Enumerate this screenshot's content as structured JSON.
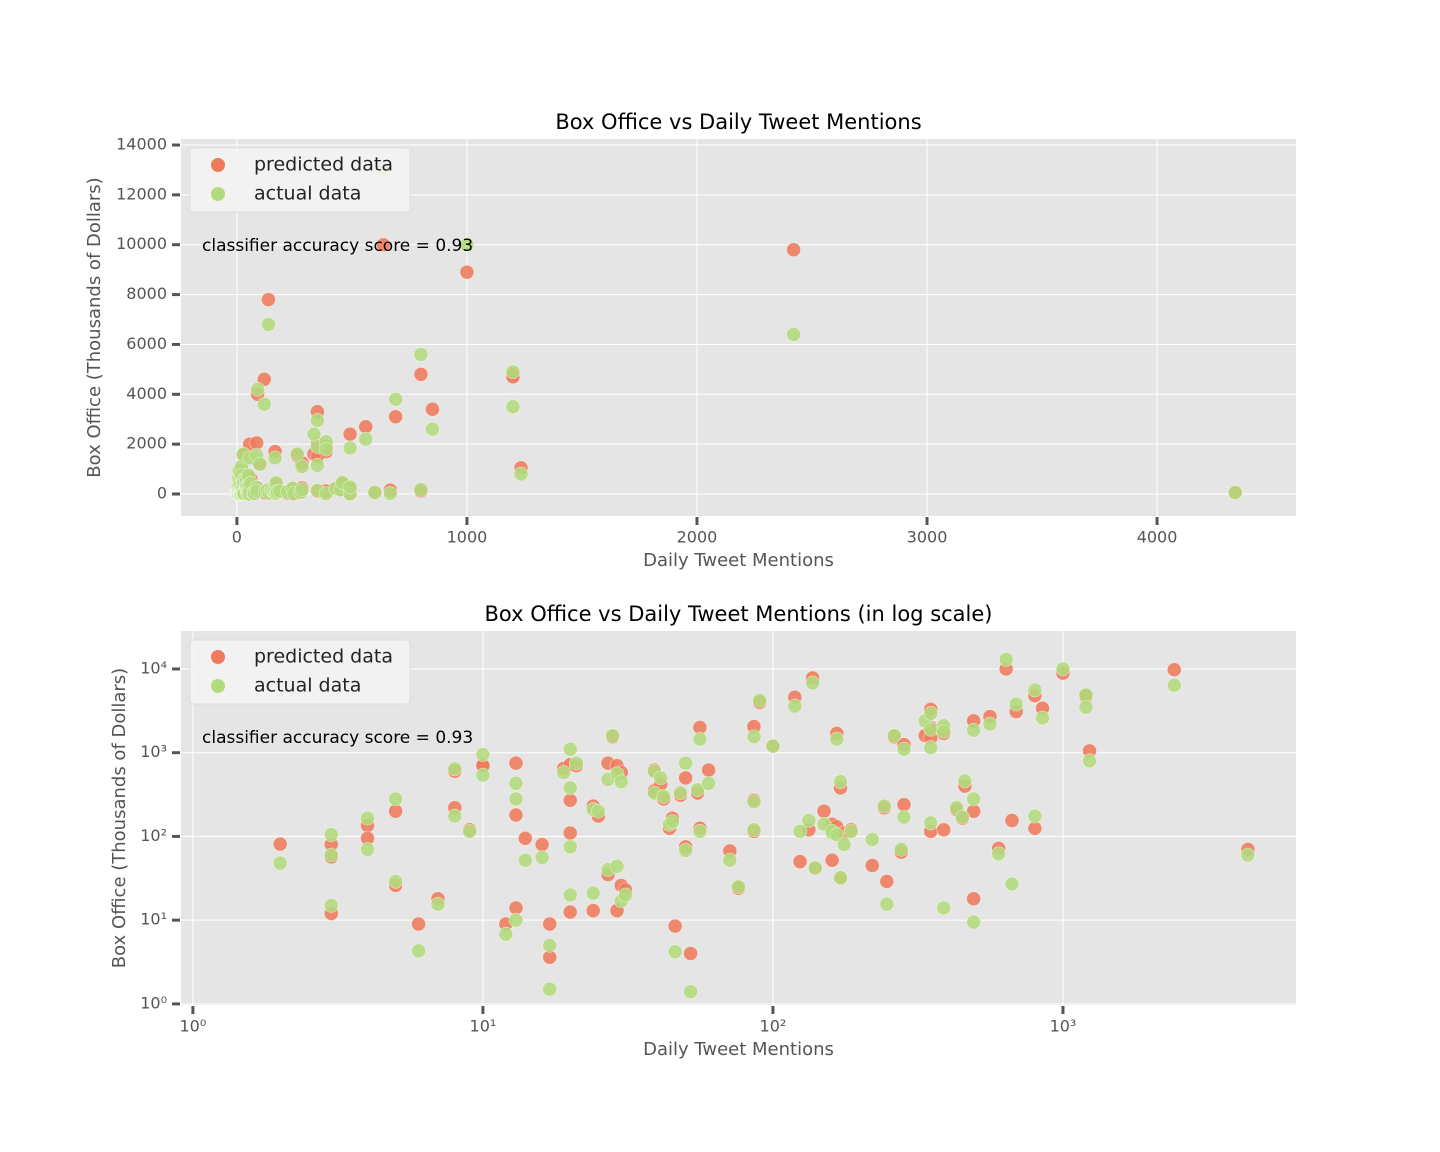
{
  "chart_data": [
    {
      "type": "scatter",
      "title": "Box Office vs Daily Tweet Mentions",
      "x_label": "Daily Tweet Mentions",
      "y_label": "Box Office (Thousands of Dollars)",
      "annotation": "classifier accuracy score = 0.93",
      "legend": "upper left",
      "grid": true,
      "xscale": "linear",
      "yscale": "linear",
      "xlim": [
        -243,
        4604
      ],
      "ylim": [
        -882,
        14241
      ],
      "xticks": [
        0,
        1000,
        2000,
        3000,
        4000
      ],
      "yticks": [
        0,
        2000,
        4000,
        6000,
        8000,
        10000,
        12000,
        14000
      ],
      "x": [
        2,
        3,
        3,
        3,
        4,
        4,
        5,
        5,
        6,
        7,
        8,
        8,
        9,
        10,
        10,
        12,
        13,
        13,
        13,
        14,
        16,
        17,
        17,
        19,
        20,
        20,
        20,
        20,
        21,
        24,
        24,
        25,
        27,
        27,
        28,
        29,
        29,
        30,
        30,
        31,
        39,
        39,
        41,
        42,
        44,
        45,
        46,
        48,
        50,
        50,
        52,
        55,
        56,
        56,
        60,
        71,
        76,
        86,
        86,
        86,
        90,
        100,
        119,
        124,
        133,
        137,
        140,
        150,
        160,
        160,
        166,
        166,
        171,
        171,
        176,
        186,
        220,
        242,
        247,
        262,
        277,
        283,
        283,
        335,
        350,
        350,
        350,
        350,
        388,
        388,
        388,
        430,
        450,
        459,
        492,
        492,
        492,
        560,
        600,
        637,
        667,
        690,
        800,
        800,
        850,
        1000,
        1200,
        1200,
        1235,
        2420,
        4340
      ],
      "series": [
        {
          "name": "predicted data",
          "color": "#ee7b5b",
          "values": [
            81,
            12,
            57,
            80,
            135,
            95,
            200,
            26,
            9,
            18,
            220,
            600,
            120,
            700,
            700,
            9,
            750,
            180,
            14,
            95,
            80,
            9,
            3.6,
            650,
            270,
            110,
            12.5,
            720,
            700,
            230,
            13,
            175,
            750,
            35,
            1550,
            700,
            13,
            580,
            26,
            23,
            620,
            350,
            420,
            280,
            125,
            165,
            8.5,
            310,
            500,
            75,
            4,
            330,
            2000,
            125,
            620,
            67,
            24,
            2050,
            270,
            115,
            4000,
            1200,
            4600,
            50,
            120,
            7800,
            42,
            200,
            52,
            140,
            1700,
            130,
            380,
            32,
            110,
            120,
            45,
            220,
            29,
            1550,
            65,
            240,
            1250,
            1600,
            3300,
            115,
            1500,
            2000,
            1700,
            120,
            1900,
            210,
            165,
            400,
            18,
            200,
            2400,
            2700,
            72,
            10000,
            155,
            3100,
            4800,
            125,
            3400,
            8900,
            4800,
            4700,
            1050,
            9800,
            70
          ]
        },
        {
          "name": "actual data",
          "color": "#b2db7c",
          "values": [
            48,
            15,
            60,
            105,
            165,
            70,
            280,
            29,
            4.3,
            15.5,
            175,
            640,
            115,
            950,
            540,
            6.8,
            280,
            430,
            10,
            52,
            56,
            5,
            1.5,
            580,
            1100,
            75,
            20,
            380,
            750,
            210,
            21,
            200,
            480,
            40,
            1600,
            560,
            44,
            450,
            17,
            20,
            600,
            330,
            500,
            300,
            140,
            150,
            4.2,
            330,
            750,
            68,
            1.4,
            360,
            1450,
            115,
            430,
            52,
            25,
            1550,
            260,
            120,
            4200,
            1200,
            3600,
            115,
            155,
            6800,
            42,
            140,
            110,
            115,
            1450,
            105,
            450,
            32,
            80,
            115,
            92,
            230,
            15.5,
            1600,
            70,
            170,
            1100,
            2400,
            2950,
            145,
            1150,
            1900,
            2100,
            14,
            1800,
            220,
            170,
            460,
            9.5,
            280,
            1850,
            2200,
            62,
            13000,
            27,
            3800,
            5600,
            175,
            2600,
            10000,
            4900,
            3500,
            800,
            6400,
            60
          ]
        }
      ]
    },
    {
      "type": "scatter",
      "title": "Box Office vs Daily Tweet Mentions (in log scale)",
      "x_label": "Daily Tweet Mentions",
      "y_label": "Box Office (Thousands of Dollars)",
      "annotation": "classifier accuracy score = 0.93",
      "legend": "upper left",
      "grid": true,
      "xscale": "log",
      "yscale": "log",
      "xlim": [
        0.91,
        6360
      ],
      "ylim": [
        0.97,
        28400
      ],
      "xticks": [
        {
          "value": 1,
          "label": "10⁰"
        },
        {
          "value": 10,
          "label": "10¹"
        },
        {
          "value": 100,
          "label": "10²"
        },
        {
          "value": 1000,
          "label": "10³"
        }
      ],
      "yticks": [
        {
          "value": 1,
          "label": "10⁰"
        },
        {
          "value": 10,
          "label": "10¹"
        },
        {
          "value": 100,
          "label": "10²"
        },
        {
          "value": 1000,
          "label": "10³"
        },
        {
          "value": 10000,
          "label": "10⁴"
        }
      ],
      "x": [
        2,
        3,
        3,
        3,
        4,
        4,
        5,
        5,
        6,
        7,
        8,
        8,
        9,
        10,
        10,
        12,
        13,
        13,
        13,
        14,
        16,
        17,
        17,
        19,
        20,
        20,
        20,
        20,
        21,
        24,
        24,
        25,
        27,
        27,
        28,
        29,
        29,
        30,
        30,
        31,
        39,
        39,
        41,
        42,
        44,
        45,
        46,
        48,
        50,
        50,
        52,
        55,
        56,
        56,
        60,
        71,
        76,
        86,
        86,
        86,
        90,
        100,
        119,
        124,
        133,
        137,
        140,
        150,
        160,
        160,
        166,
        166,
        171,
        171,
        176,
        186,
        220,
        242,
        247,
        262,
        277,
        283,
        283,
        335,
        350,
        350,
        350,
        350,
        388,
        388,
        388,
        430,
        450,
        459,
        492,
        492,
        492,
        560,
        600,
        637,
        667,
        690,
        800,
        800,
        850,
        1000,
        1200,
        1200,
        1235,
        2420,
        4340
      ],
      "series": [
        {
          "name": "predicted data",
          "color": "#ee7b5b",
          "values": [
            81,
            12,
            57,
            80,
            135,
            95,
            200,
            26,
            9,
            18,
            220,
            600,
            120,
            700,
            700,
            9,
            750,
            180,
            14,
            95,
            80,
            9,
            3.6,
            650,
            270,
            110,
            12.5,
            720,
            700,
            230,
            13,
            175,
            750,
            35,
            1550,
            700,
            13,
            580,
            26,
            23,
            620,
            350,
            420,
            280,
            125,
            165,
            8.5,
            310,
            500,
            75,
            4,
            330,
            2000,
            125,
            620,
            67,
            24,
            2050,
            270,
            115,
            4000,
            1200,
            4600,
            50,
            120,
            7800,
            42,
            200,
            52,
            140,
            1700,
            130,
            380,
            32,
            110,
            120,
            45,
            220,
            29,
            1550,
            65,
            240,
            1250,
            1600,
            3300,
            115,
            1500,
            2000,
            1700,
            120,
            1900,
            210,
            165,
            400,
            18,
            200,
            2400,
            2700,
            72,
            10000,
            155,
            3100,
            4800,
            125,
            3400,
            8900,
            4800,
            4700,
            1050,
            9800,
            70
          ]
        },
        {
          "name": "actual data",
          "color": "#b2db7c",
          "values": [
            48,
            15,
            60,
            105,
            165,
            70,
            280,
            29,
            4.3,
            15.5,
            175,
            640,
            115,
            950,
            540,
            6.8,
            280,
            430,
            10,
            52,
            56,
            5,
            1.5,
            580,
            1100,
            75,
            20,
            380,
            750,
            210,
            21,
            200,
            480,
            40,
            1600,
            560,
            44,
            450,
            17,
            20,
            600,
            330,
            500,
            300,
            140,
            150,
            4.2,
            330,
            750,
            68,
            1.4,
            360,
            1450,
            115,
            430,
            52,
            25,
            1550,
            260,
            120,
            4200,
            1200,
            3600,
            115,
            155,
            6800,
            42,
            140,
            110,
            115,
            1450,
            105,
            450,
            32,
            80,
            115,
            92,
            230,
            15.5,
            1600,
            70,
            170,
            1100,
            2400,
            2950,
            145,
            1150,
            1900,
            2100,
            14,
            1800,
            220,
            170,
            460,
            9.5,
            280,
            1850,
            2200,
            62,
            13000,
            27,
            3800,
            5600,
            175,
            2600,
            10000,
            4900,
            3500,
            800,
            6400,
            60
          ]
        }
      ]
    }
  ]
}
